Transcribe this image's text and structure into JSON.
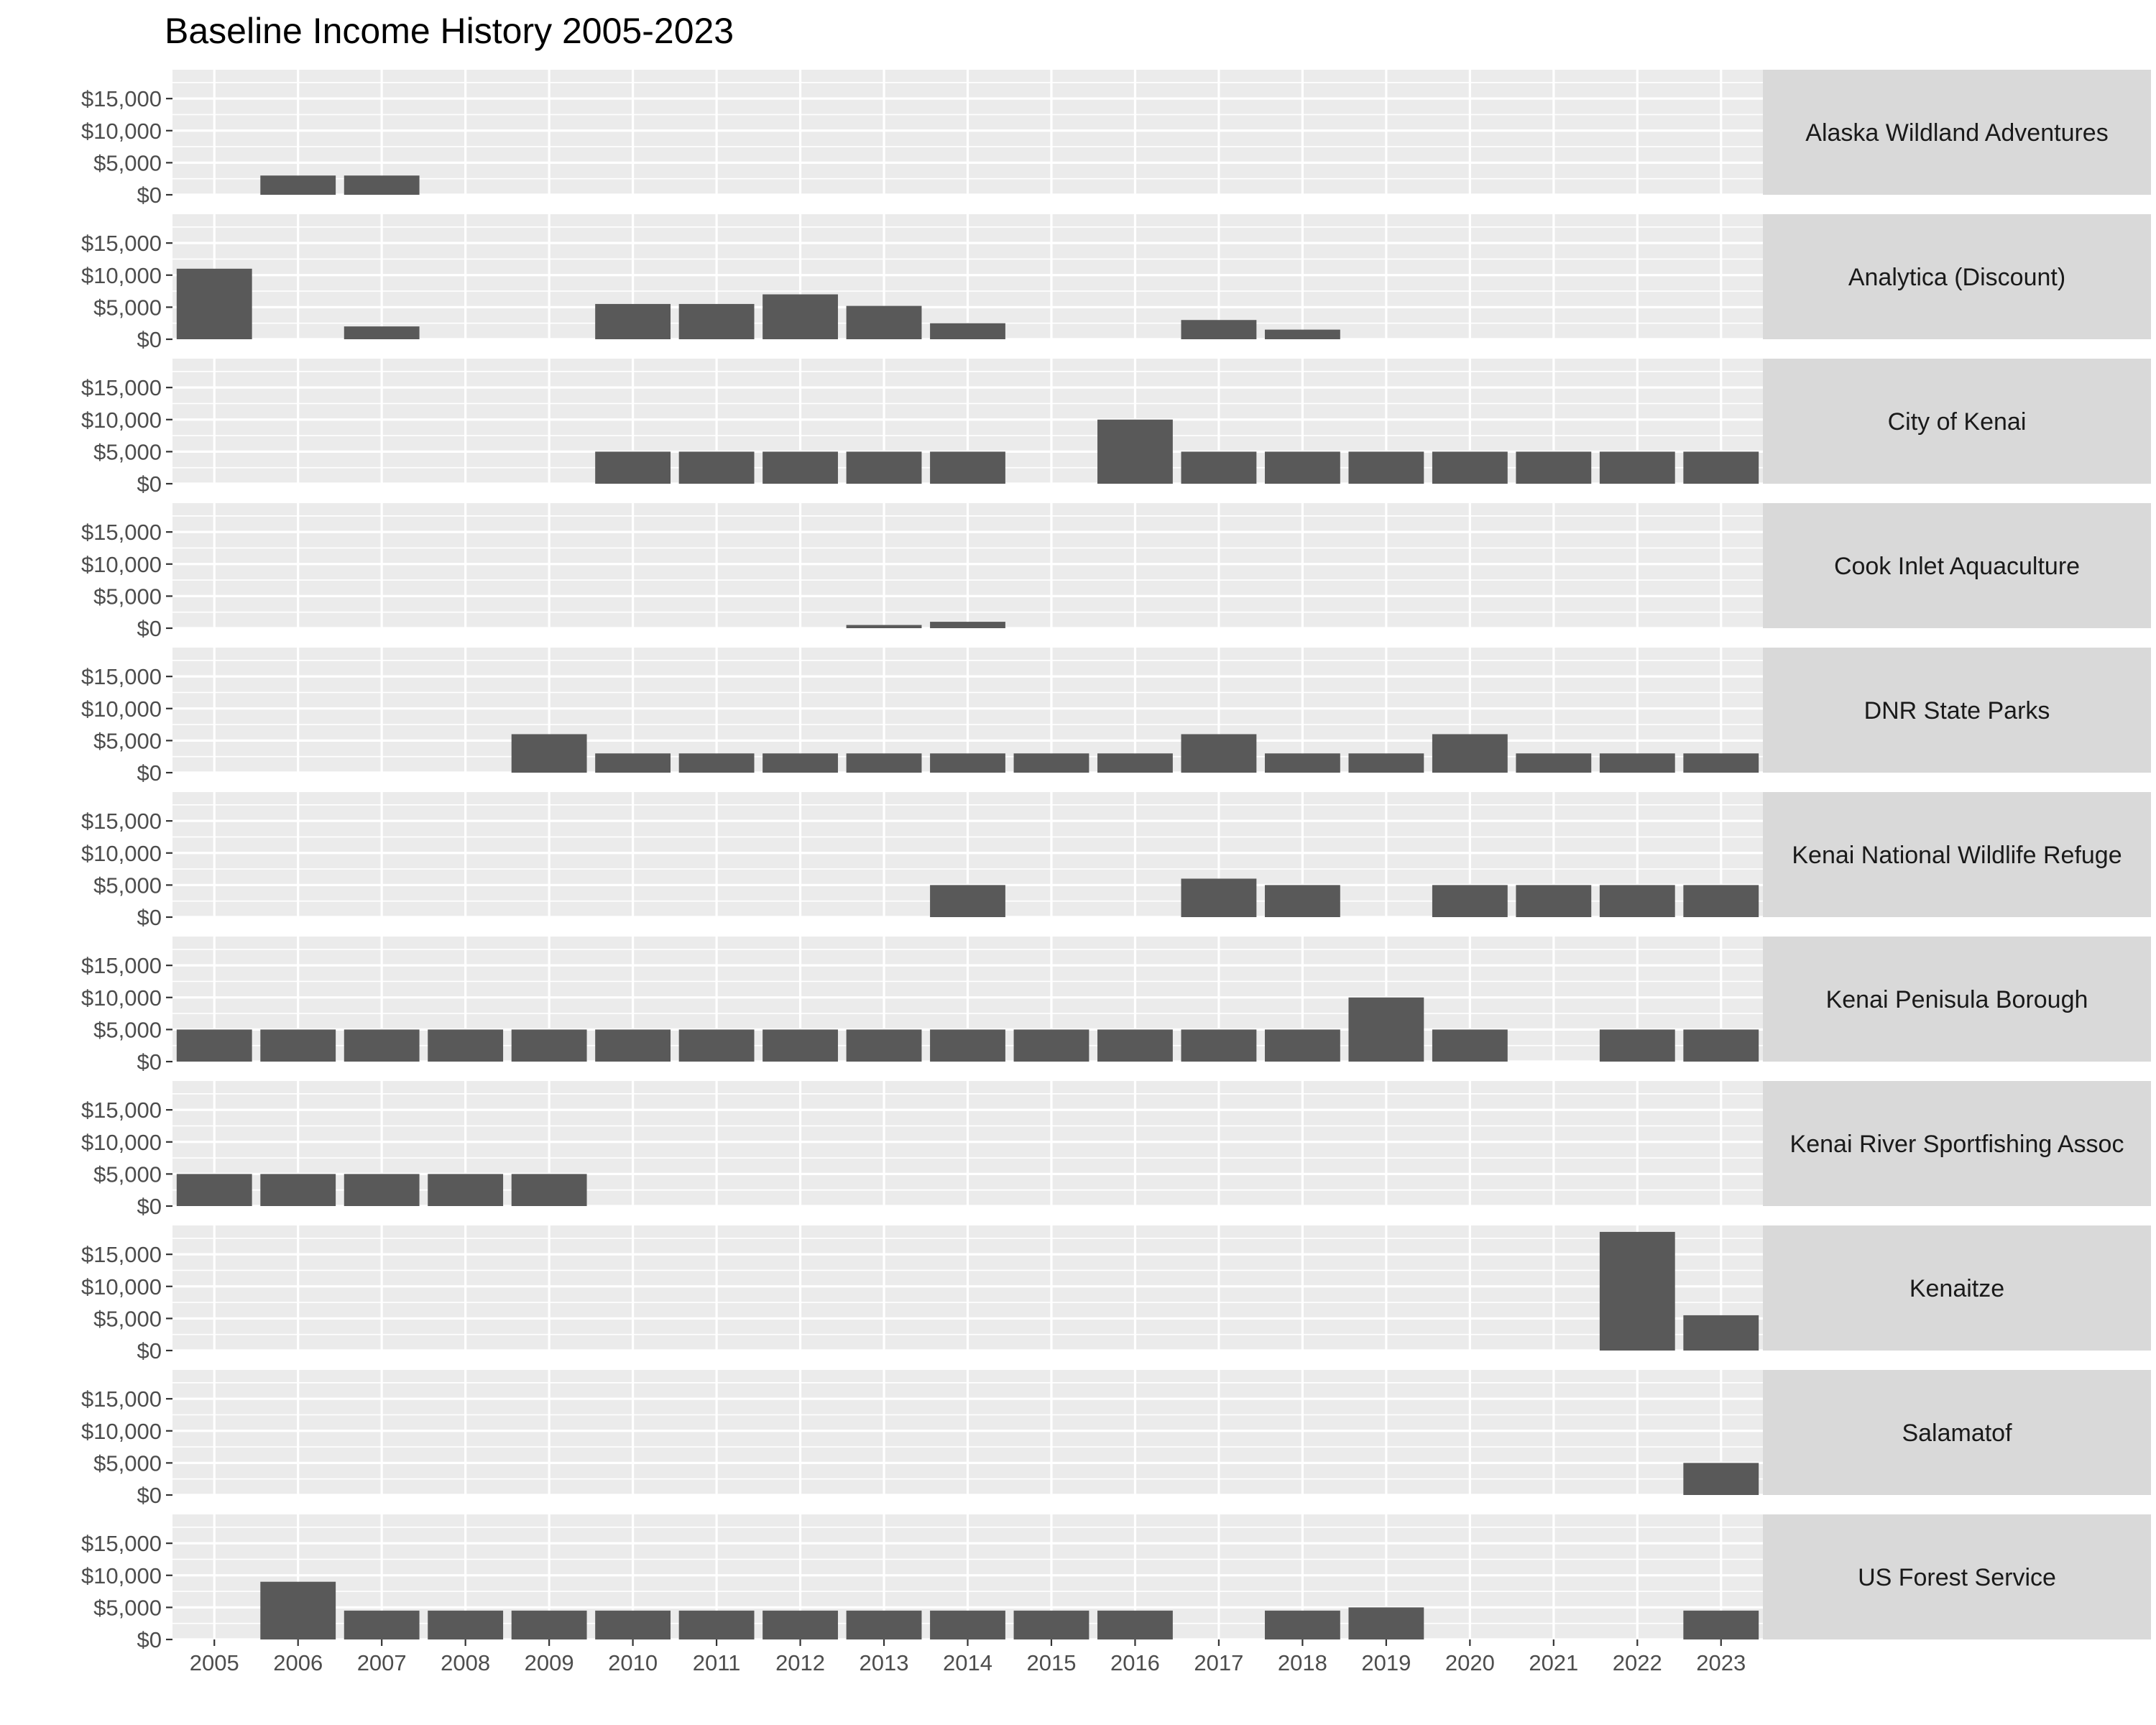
{
  "chart_data": {
    "type": "bar",
    "title": "Baseline Income History 2005-2023",
    "xlabel": "",
    "ylabel": "",
    "facet_layout": "stacked-rows-strip-right",
    "grid": true,
    "ylim": [
      0,
      19500
    ],
    "y_ticks": [
      0,
      5000,
      10000,
      15000
    ],
    "y_tick_labels": [
      "$0",
      "$5,000",
      "$10,000",
      "$15,000"
    ],
    "categories": [
      "2005",
      "2006",
      "2007",
      "2008",
      "2009",
      "2010",
      "2011",
      "2012",
      "2013",
      "2014",
      "2015",
      "2016",
      "2017",
      "2018",
      "2019",
      "2020",
      "2021",
      "2022",
      "2023"
    ],
    "colors": {
      "bar": "#595959",
      "panel": "#ebebeb",
      "grid": "#ffffff",
      "strip": "#d9d9d9",
      "tick": "#333333"
    },
    "panels": [
      {
        "name": "Alaska Wildland Adventures",
        "values": [
          0,
          3000,
          3000,
          0,
          0,
          0,
          0,
          0,
          0,
          0,
          0,
          0,
          0,
          0,
          0,
          0,
          0,
          0,
          0
        ]
      },
      {
        "name": "Analytica (Discount)",
        "values": [
          11000,
          0,
          2000,
          0,
          0,
          5500,
          5500,
          7000,
          5200,
          2500,
          0,
          0,
          3000,
          1500,
          0,
          0,
          0,
          0,
          0
        ]
      },
      {
        "name": "City of Kenai",
        "values": [
          0,
          0,
          0,
          0,
          0,
          5000,
          5000,
          5000,
          5000,
          5000,
          0,
          10000,
          5000,
          5000,
          5000,
          5000,
          5000,
          5000,
          5000
        ]
      },
      {
        "name": "Cook Inlet Aquaculture",
        "values": [
          0,
          0,
          0,
          0,
          0,
          0,
          0,
          0,
          500,
          1000,
          0,
          0,
          0,
          0,
          0,
          0,
          0,
          0,
          0
        ]
      },
      {
        "name": "DNR State Parks",
        "values": [
          0,
          0,
          0,
          0,
          6000,
          3000,
          3000,
          3000,
          3000,
          3000,
          3000,
          3000,
          6000,
          3000,
          3000,
          6000,
          3000,
          3000,
          3000
        ]
      },
      {
        "name": "Kenai National Wildlife Refuge",
        "values": [
          0,
          0,
          0,
          0,
          0,
          0,
          0,
          0,
          0,
          5000,
          0,
          0,
          6000,
          5000,
          0,
          5000,
          5000,
          5000,
          5000
        ]
      },
      {
        "name": "Kenai Penisula Borough",
        "values": [
          5000,
          5000,
          5000,
          5000,
          5000,
          5000,
          5000,
          5000,
          5000,
          5000,
          5000,
          5000,
          5000,
          5000,
          10000,
          5000,
          0,
          5000,
          5000
        ]
      },
      {
        "name": "Kenai River Sportfishing Assoc",
        "values": [
          5000,
          5000,
          5000,
          5000,
          5000,
          0,
          0,
          0,
          0,
          0,
          0,
          0,
          0,
          0,
          0,
          0,
          0,
          0,
          0
        ]
      },
      {
        "name": "Kenaitze",
        "values": [
          0,
          0,
          0,
          0,
          0,
          0,
          0,
          0,
          0,
          0,
          0,
          0,
          0,
          0,
          0,
          0,
          0,
          18500,
          5500
        ]
      },
      {
        "name": "Salamatof",
        "values": [
          0,
          0,
          0,
          0,
          0,
          0,
          0,
          0,
          0,
          0,
          0,
          0,
          0,
          0,
          0,
          0,
          0,
          0,
          5000
        ]
      },
      {
        "name": "US Forest Service",
        "values": [
          0,
          9000,
          4500,
          4500,
          4500,
          4500,
          4500,
          4500,
          4500,
          4500,
          4500,
          4500,
          0,
          4500,
          5000,
          0,
          0,
          0,
          4500
        ]
      }
    ]
  }
}
